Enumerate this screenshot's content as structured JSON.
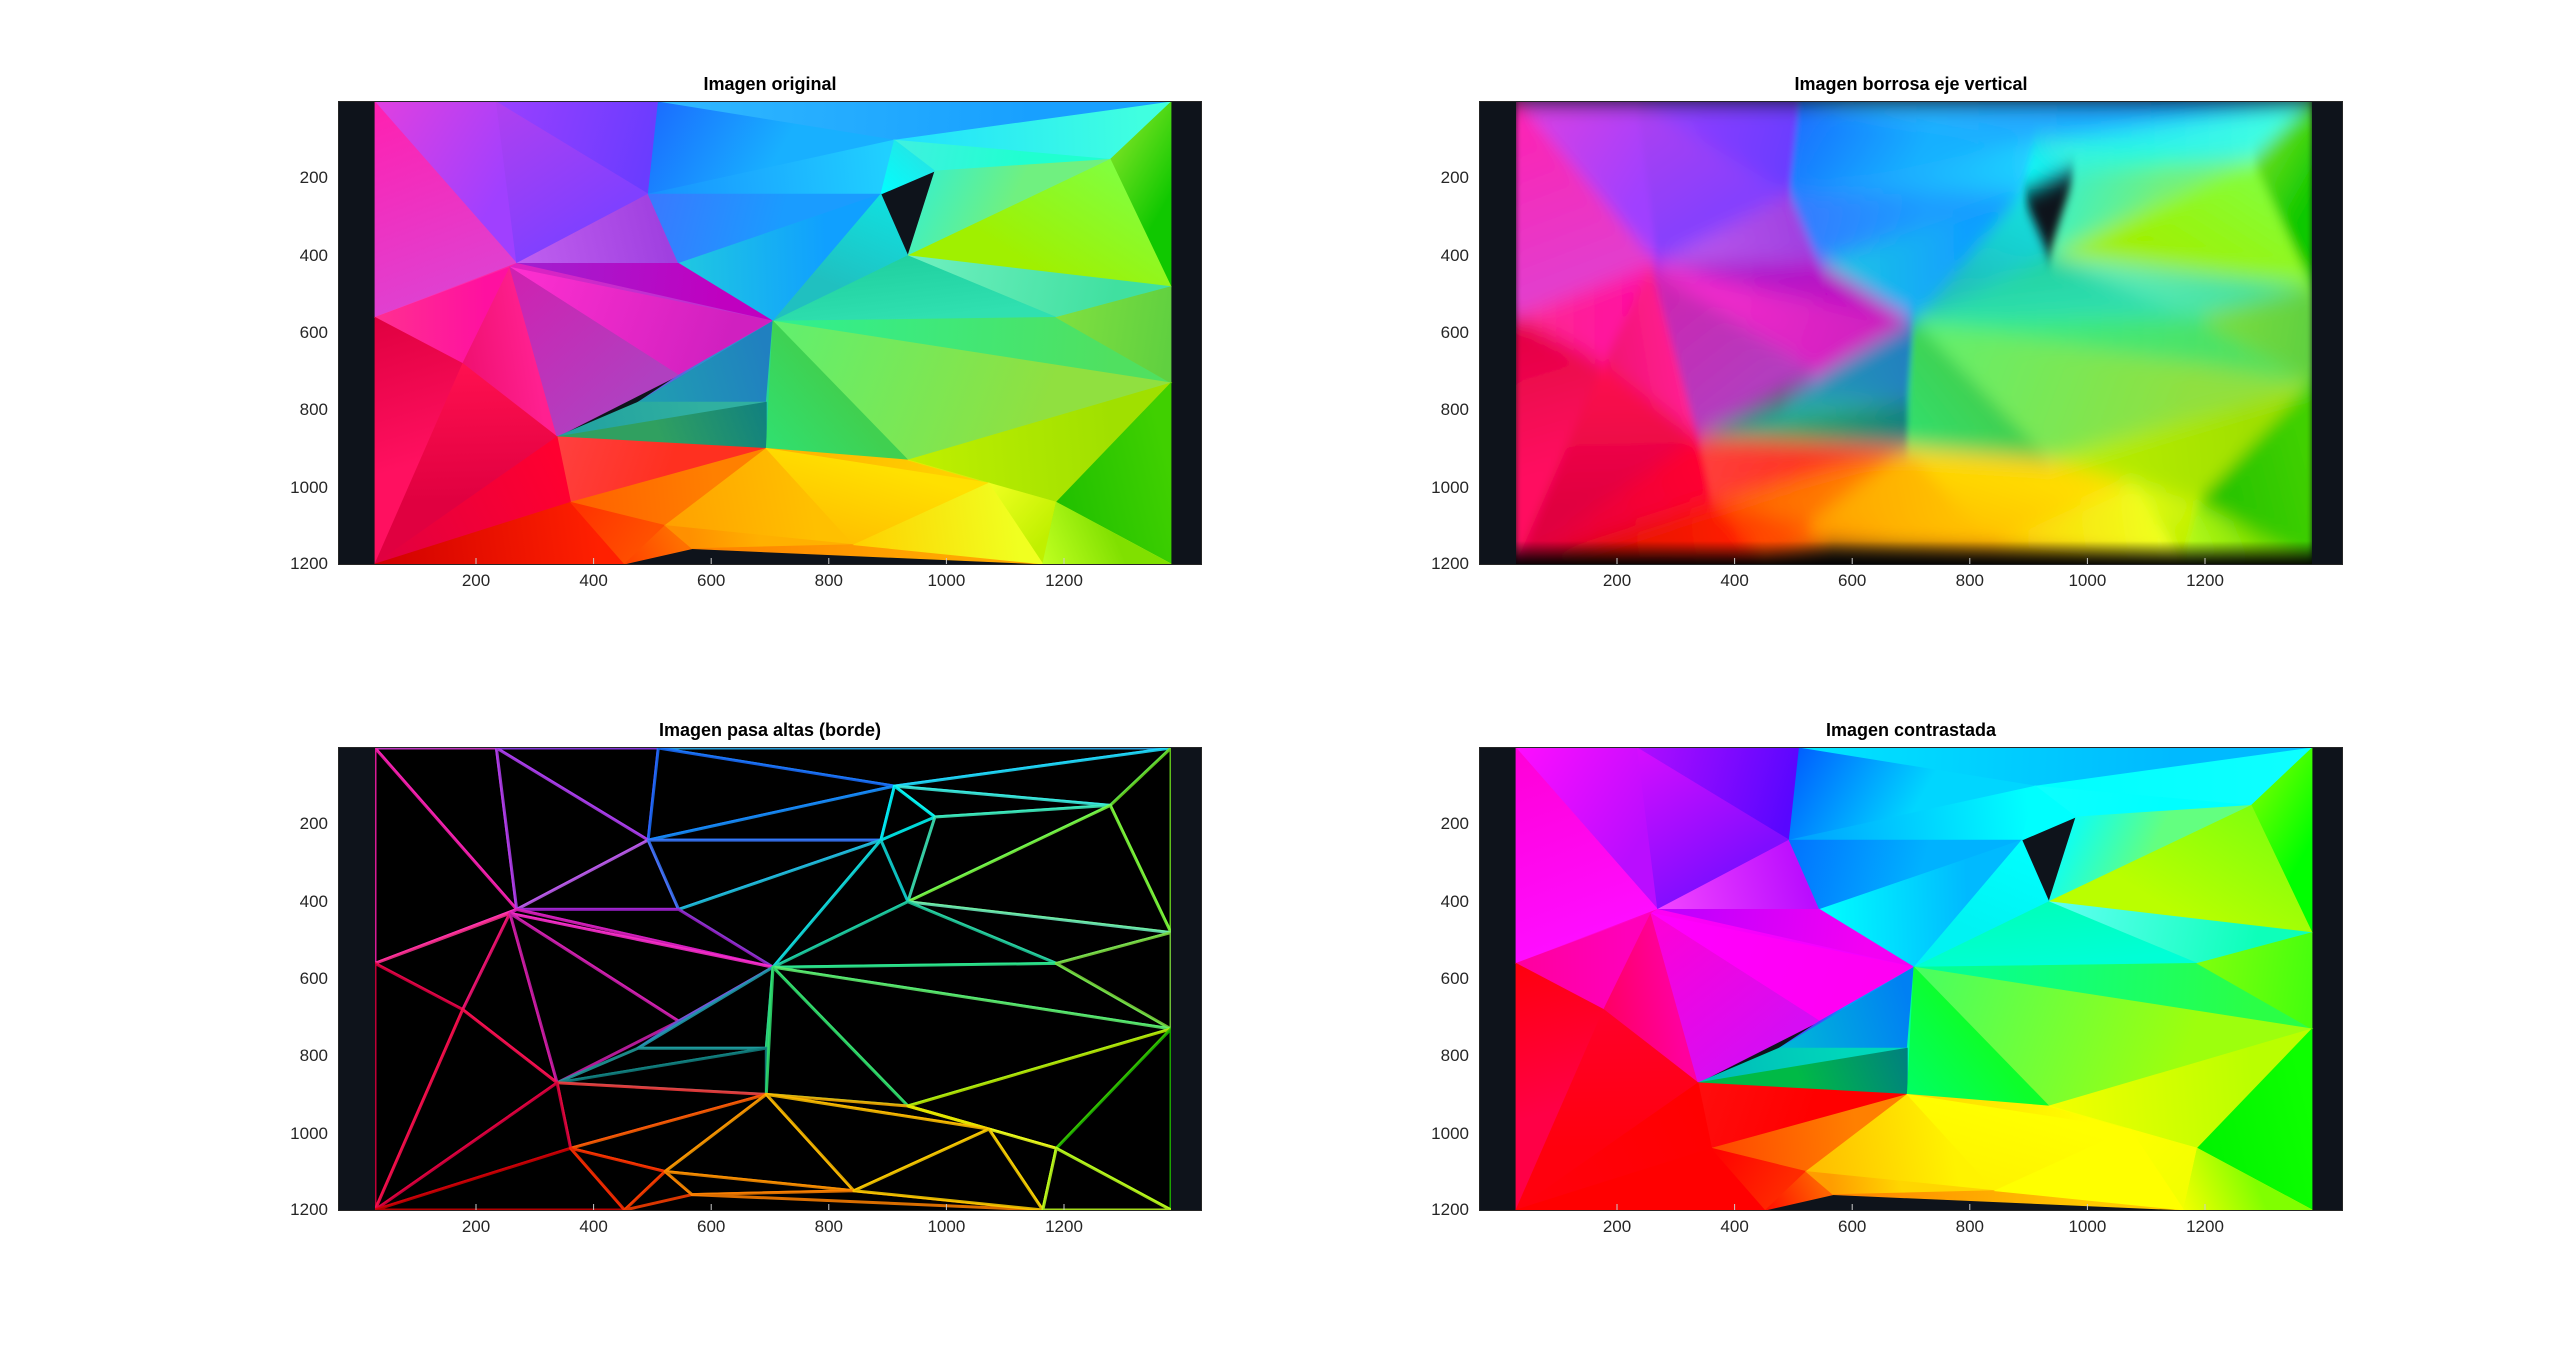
{
  "chart_data": [
    {
      "type": "image",
      "title": "Imagen original",
      "xticks": [
        "200",
        "400",
        "600",
        "800",
        "1000",
        "1200"
      ],
      "yticks": [
        "200",
        "400",
        "600",
        "800",
        "1000",
        "1200"
      ],
      "xlim": [
        0,
        1280
      ],
      "ylim": [
        0,
        1200
      ],
      "style": "original"
    },
    {
      "type": "image",
      "title": "Imagen borrosa eje vertical",
      "xticks": [
        "200",
        "400",
        "600",
        "800",
        "1000",
        "1200"
      ],
      "yticks": [
        "200",
        "400",
        "600",
        "800",
        "1000",
        "1200"
      ],
      "xlim": [
        0,
        1280
      ],
      "ylim": [
        0,
        1200
      ],
      "style": "blur"
    },
    {
      "type": "image",
      "title": "Imagen pasa altas (borde)",
      "xticks": [
        "200",
        "400",
        "600",
        "800",
        "1000",
        "1200"
      ],
      "yticks": [
        "200",
        "400",
        "600",
        "800",
        "1000",
        "1200"
      ],
      "xlim": [
        0,
        1280
      ],
      "ylim": [
        0,
        1200
      ],
      "style": "edges"
    },
    {
      "type": "image",
      "title": "Imagen contrastada",
      "xticks": [
        "200",
        "400",
        "600",
        "800",
        "1000",
        "1200"
      ],
      "yticks": [
        "200",
        "400",
        "600",
        "800",
        "1000",
        "1200"
      ],
      "xlim": [
        0,
        1280
      ],
      "ylim": [
        0,
        1200
      ],
      "style": "contrast"
    }
  ]
}
